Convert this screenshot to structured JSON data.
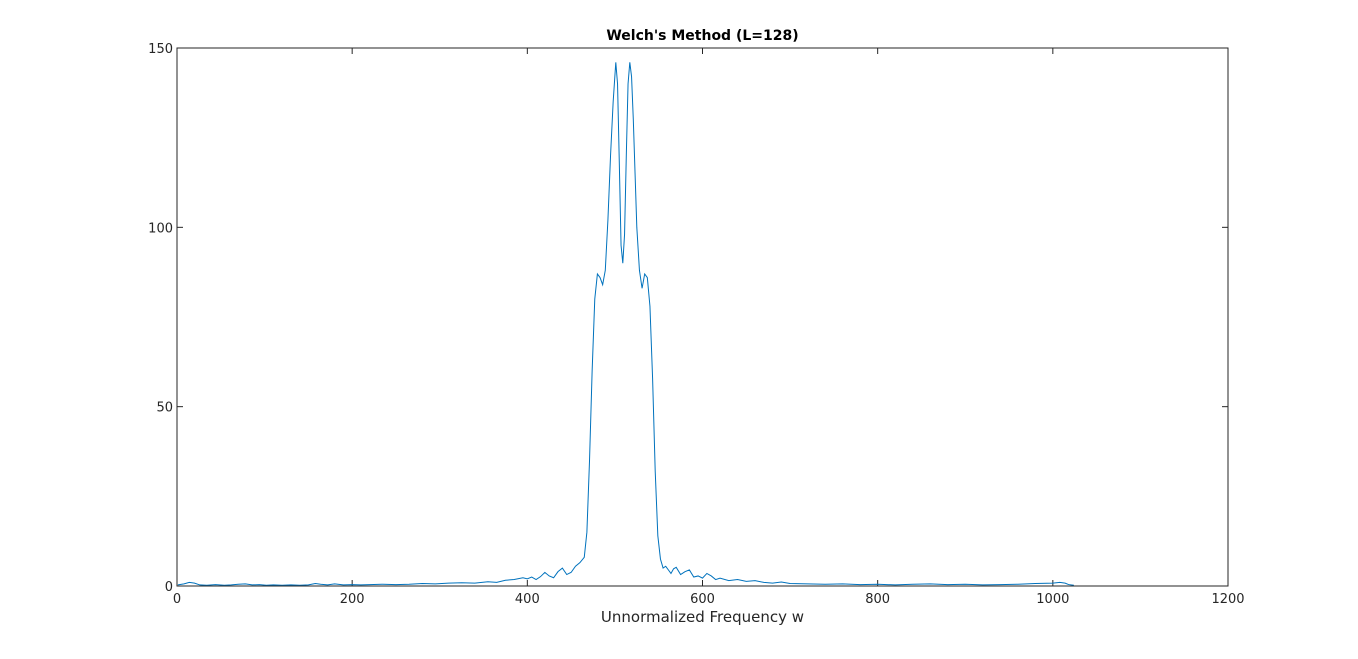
{
  "chart_data": {
    "type": "line",
    "title": "Welch's Method (L=128)",
    "xlabel": "Unnormalized Frequency w",
    "ylabel": "",
    "xlim": [
      0,
      1200
    ],
    "ylim": [
      0,
      150
    ],
    "xticks": [
      "0",
      "200",
      "400",
      "600",
      "800",
      "1000",
      "1200"
    ],
    "yticks": [
      "0",
      "50",
      "100",
      "150"
    ],
    "grid": false,
    "line_color": "#0072BD",
    "series": [
      {
        "x": [
          1,
          8,
          14,
          20,
          26,
          34,
          44,
          54,
          62,
          70,
          78,
          86,
          94,
          102,
          110,
          120,
          130,
          140,
          150,
          158,
          164,
          172,
          180,
          190,
          200,
          210,
          220,
          235,
          250,
          265,
          280,
          295,
          310,
          325,
          340,
          355,
          365,
          375,
          385,
          395,
          400,
          405,
          410,
          415,
          420,
          425,
          430,
          435,
          440,
          445,
          450,
          455,
          460,
          465,
          468,
          471,
          474,
          477,
          480,
          483,
          486,
          489,
          492,
          495,
          498,
          501,
          503,
          505,
          507,
          509,
          511,
          513,
          515,
          517,
          519,
          521,
          523,
          525,
          528,
          531,
          534,
          537,
          540,
          543,
          546,
          549,
          552,
          555,
          558,
          561,
          564,
          567,
          570,
          575,
          580,
          585,
          590,
          595,
          600,
          605,
          610,
          615,
          620,
          630,
          640,
          650,
          660,
          670,
          680,
          690,
          700,
          720,
          740,
          760,
          780,
          800,
          820,
          840,
          860,
          880,
          900,
          920,
          940,
          960,
          980,
          1000,
          1008,
          1014,
          1018,
          1024
        ],
        "y": [
          0.3,
          0.6,
          1.0,
          0.8,
          0.3,
          0.2,
          0.4,
          0.2,
          0.3,
          0.5,
          0.6,
          0.3,
          0.4,
          0.2,
          0.3,
          0.2,
          0.3,
          0.2,
          0.3,
          0.7,
          0.5,
          0.3,
          0.6,
          0.3,
          0.4,
          0.3,
          0.4,
          0.5,
          0.4,
          0.5,
          0.7,
          0.6,
          0.8,
          0.9,
          0.8,
          1.2,
          1.0,
          1.6,
          1.8,
          2.3,
          2.0,
          2.5,
          1.8,
          2.6,
          3.8,
          2.8,
          2.3,
          4.0,
          5.0,
          3.2,
          3.8,
          5.5,
          6.5,
          8.0,
          15.0,
          35.0,
          60.0,
          80.0,
          87.0,
          86.0,
          84.0,
          88.0,
          102.0,
          120.0,
          135.0,
          146.0,
          140.0,
          118.0,
          95.0,
          90.0,
          98.0,
          120.0,
          140.0,
          146.0,
          142.0,
          130.0,
          115.0,
          100.0,
          88.0,
          83.0,
          87.0,
          86.0,
          78.0,
          58.0,
          32.0,
          14.0,
          7.5,
          5.0,
          5.5,
          4.5,
          3.5,
          4.8,
          5.2,
          3.2,
          4.0,
          4.5,
          2.5,
          2.8,
          2.2,
          3.5,
          2.8,
          1.8,
          2.2,
          1.5,
          1.8,
          1.3,
          1.5,
          1.0,
          0.8,
          1.1,
          0.7,
          0.6,
          0.5,
          0.6,
          0.4,
          0.5,
          0.3,
          0.5,
          0.6,
          0.4,
          0.5,
          0.3,
          0.4,
          0.5,
          0.7,
          0.8,
          1.0,
          0.8,
          0.4,
          0.2
        ]
      }
    ]
  }
}
